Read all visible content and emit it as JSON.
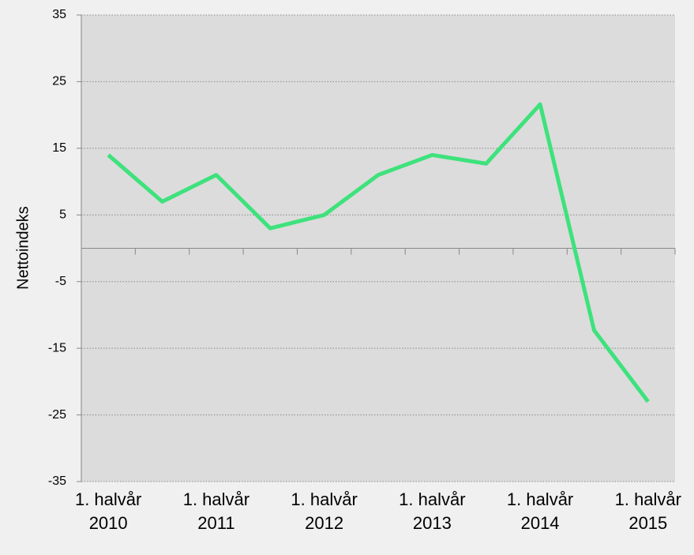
{
  "chart_data": {
    "type": "line",
    "y_label": "Nettoindeks",
    "categories": [
      "1. halvår 2010",
      null,
      "1. halvår 2011",
      null,
      "1. halvår 2012",
      null,
      "1. halvår 2013",
      null,
      "1. halvår 2014",
      null,
      "1. halvår 2015"
    ],
    "series": [
      {
        "name": "Nettoindeks",
        "color": "#3ee27c",
        "values": [
          14,
          7,
          11,
          3,
          5,
          11,
          14,
          12.7,
          21.6,
          -12.3,
          -23
        ]
      }
    ],
    "ylim": [
      -35,
      35
    ],
    "yticks": [
      -35,
      -25,
      -15,
      -5,
      5,
      15,
      25,
      35
    ],
    "grid": true
  }
}
